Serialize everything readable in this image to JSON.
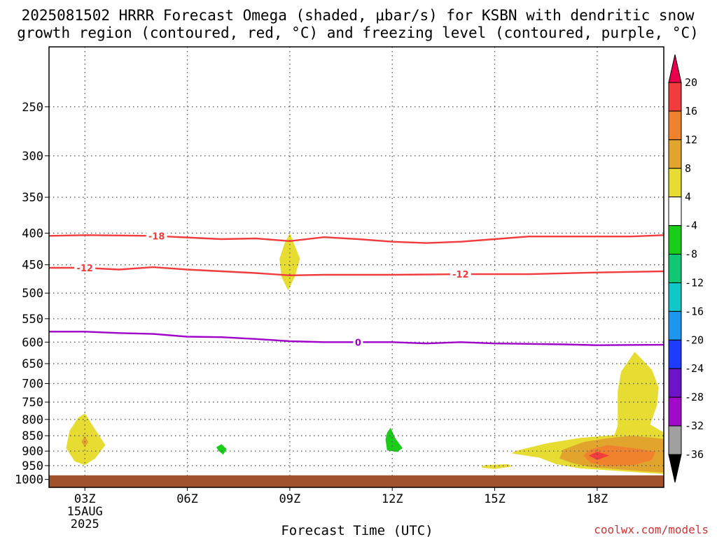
{
  "title_line1": "2025081502 HRRR Forecast Omega (shaded, μbar/s) for KSBN with dendritic snow",
  "title_line2": "growth region (contoured, red, °C) and freezing level (contoured, purple, °C)",
  "xlabel": "Forecast Time (UTC)",
  "credit": "coolwx.com/models",
  "chart_data": {
    "type": "heatmap",
    "x_axis": {
      "range_hours_utc": [
        1.95,
        19.95
      ],
      "ticks": [
        {
          "hour": 3,
          "label": "03Z",
          "sub1": "15AUG",
          "sub2": "2025"
        },
        {
          "hour": 6,
          "label": "06Z"
        },
        {
          "hour": 9,
          "label": "09Z"
        },
        {
          "hour": 12,
          "label": "12Z"
        },
        {
          "hour": 15,
          "label": "15Z"
        },
        {
          "hour": 18,
          "label": "18Z"
        }
      ]
    },
    "y_axis": {
      "scale": "log",
      "reversed": true,
      "range_hpa": [
        200,
        1030
      ],
      "ticks": [
        250,
        300,
        350,
        400,
        450,
        500,
        550,
        600,
        650,
        700,
        750,
        800,
        850,
        900,
        950,
        1000
      ],
      "tick_labels": [
        "250",
        "300",
        "350",
        "400",
        "450",
        "500",
        "550",
        "600",
        "650",
        "700",
        "750",
        "800",
        "850",
        "900",
        "950",
        "1000"
      ]
    },
    "grid": true,
    "ground_pressure_hpa": 985,
    "colorbar": {
      "labels": [
        "20",
        "16",
        "12",
        "8",
        "4",
        "-4",
        "-8",
        "-12",
        "-16",
        "-20",
        "-24",
        "-28",
        "-32",
        "-36"
      ],
      "colors": [
        "#e8004c",
        "#f03c3c",
        "#f0822d",
        "#e1a52d",
        "#e6dc32",
        "#ffffff",
        "#19cd19",
        "#10c873",
        "#10c8c8",
        "#1e96f0",
        "#1e3cff",
        "#6e14c8",
        "#a00ac8",
        "#a0a0a0",
        "#000000"
      ]
    },
    "contours": [
      {
        "label": "-18",
        "color": "#f03c3c",
        "label_hours": [
          5.1
        ],
        "points": [
          [
            1.95,
            404
          ],
          [
            3,
            403
          ],
          [
            5,
            404
          ],
          [
            7,
            409
          ],
          [
            8,
            408
          ],
          [
            9,
            412
          ],
          [
            10,
            406
          ],
          [
            11,
            409
          ],
          [
            12,
            413
          ],
          [
            13,
            415
          ],
          [
            14,
            413
          ],
          [
            15,
            409
          ],
          [
            16,
            405
          ],
          [
            18,
            405
          ],
          [
            19,
            405
          ],
          [
            19.95,
            403
          ]
        ]
      },
      {
        "label": "-12",
        "color": "#f03c3c",
        "label_hours": [
          3.0,
          14.0
        ],
        "points": [
          [
            1.95,
            455
          ],
          [
            3,
            455
          ],
          [
            4,
            458
          ],
          [
            5,
            454
          ],
          [
            6,
            458
          ],
          [
            7,
            461
          ],
          [
            8,
            464
          ],
          [
            9,
            468
          ],
          [
            10,
            467
          ],
          [
            12,
            467
          ],
          [
            14,
            466
          ],
          [
            16,
            466
          ],
          [
            18,
            463
          ],
          [
            19.95,
            461
          ]
        ]
      },
      {
        "label": "0",
        "color": "#9e00c8",
        "label_hours": [
          11.0
        ],
        "points": [
          [
            1.95,
            577
          ],
          [
            3,
            577
          ],
          [
            4,
            580
          ],
          [
            5,
            582
          ],
          [
            6,
            588
          ],
          [
            7,
            589
          ],
          [
            8,
            593
          ],
          [
            9,
            598
          ],
          [
            10,
            600
          ],
          [
            12,
            600
          ],
          [
            13,
            603
          ],
          [
            14,
            600
          ],
          [
            15,
            603
          ],
          [
            16,
            604
          ],
          [
            17,
            605
          ],
          [
            18,
            607
          ],
          [
            19.95,
            606
          ]
        ]
      }
    ],
    "shaded_regions": [
      {
        "omega": 4,
        "color": "#e6dc32",
        "points": [
          [
            9,
            400
          ],
          [
            9.3,
            440
          ],
          [
            9.15,
            470
          ],
          [
            8.95,
            495
          ],
          [
            8.75,
            470
          ],
          [
            8.7,
            440
          ],
          [
            8.85,
            415
          ]
        ]
      },
      {
        "omega": 4,
        "color": "#e6dc32",
        "points": [
          [
            3,
            782
          ],
          [
            3.3,
            830
          ],
          [
            3.6,
            880
          ],
          [
            3.3,
            925
          ],
          [
            3,
            948
          ],
          [
            2.7,
            935
          ],
          [
            2.45,
            890
          ],
          [
            2.55,
            835
          ],
          [
            2.8,
            795
          ]
        ]
      },
      {
        "omega": 8,
        "color": "#e1a52d",
        "points": [
          [
            3,
            850
          ],
          [
            3.1,
            870
          ],
          [
            3,
            887
          ],
          [
            2.9,
            870
          ]
        ]
      },
      {
        "omega": -4,
        "color": "#19cd19",
        "points": [
          [
            7,
            877
          ],
          [
            7.15,
            893
          ],
          [
            7.05,
            912
          ],
          [
            6.9,
            898
          ],
          [
            6.85,
            887
          ]
        ]
      },
      {
        "omega": -4,
        "color": "#19cd19",
        "points": [
          [
            11.95,
            825
          ],
          [
            12.1,
            860
          ],
          [
            12.3,
            890
          ],
          [
            12.15,
            903
          ],
          [
            11.85,
            898
          ],
          [
            11.8,
            862
          ],
          [
            11.85,
            840
          ]
        ]
      },
      {
        "omega": 4,
        "color": "#e6dc32",
        "points": [
          [
            15.4,
            945
          ],
          [
            15.5,
            953
          ],
          [
            15,
            962
          ],
          [
            14.6,
            957
          ],
          [
            14.7,
            948
          ]
        ]
      },
      {
        "omega": 4,
        "color": "#e6dc32",
        "points": [
          [
            19.1,
            622
          ],
          [
            19.6,
            665
          ],
          [
            19.8,
            710
          ],
          [
            19.75,
            760
          ],
          [
            19.55,
            815
          ],
          [
            19.95,
            840
          ],
          [
            19.95,
            980
          ],
          [
            19.3,
            975
          ],
          [
            18.5,
            968
          ],
          [
            17.5,
            960
          ],
          [
            16.8,
            945
          ],
          [
            16.3,
            922
          ],
          [
            15.5,
            908
          ],
          [
            15.6,
            900
          ],
          [
            16.5,
            875
          ],
          [
            17.5,
            857
          ],
          [
            18.5,
            848
          ],
          [
            18.6,
            820
          ],
          [
            18.6,
            720
          ],
          [
            18.7,
            670
          ]
        ]
      },
      {
        "omega": 8,
        "color": "#e1a52d",
        "points": [
          [
            19,
            850
          ],
          [
            19.5,
            855
          ],
          [
            19.95,
            860
          ],
          [
            19.95,
            975
          ],
          [
            19.3,
            970
          ],
          [
            18.5,
            962
          ],
          [
            17.8,
            955
          ],
          [
            17.3,
            942
          ],
          [
            16.9,
            925
          ],
          [
            17,
            895
          ],
          [
            17.6,
            870
          ],
          [
            18.3,
            858
          ]
        ]
      },
      {
        "omega": 12,
        "color": "#f0822d",
        "points": [
          [
            18.3,
            880
          ],
          [
            19.2,
            892
          ],
          [
            19.7,
            902
          ],
          [
            19.6,
            930
          ],
          [
            19.1,
            948
          ],
          [
            18.3,
            952
          ],
          [
            17.8,
            940
          ],
          [
            17.6,
            915
          ],
          [
            17.8,
            895
          ]
        ]
      },
      {
        "omega": 16,
        "color": "#f03c3c",
        "points": [
          [
            18,
            902
          ],
          [
            18.35,
            915
          ],
          [
            18,
            930
          ],
          [
            17.75,
            915
          ]
        ]
      }
    ]
  }
}
